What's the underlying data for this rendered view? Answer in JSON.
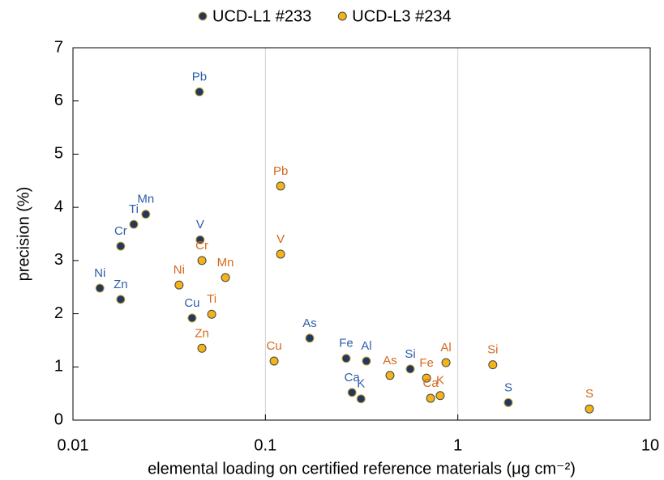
{
  "chart_data": {
    "type": "scatter",
    "xlabel": "elemental loading on certified reference materials (μg cm⁻²)",
    "ylabel": "precision (%)",
    "xscale": "log",
    "xlim": [
      0.01,
      10
    ],
    "xticks": [
      0.01,
      0.1,
      1,
      10
    ],
    "ylim": [
      0,
      7
    ],
    "yticks": [
      0,
      1,
      2,
      3,
      4,
      5,
      6,
      7
    ],
    "grid": "x",
    "legend": "top",
    "series": [
      {
        "name": "UCD-L1 #233",
        "color": "#1f3864",
        "label_color": "#2e5ea8",
        "labels": [
          "Pb",
          "Mn",
          "Ti",
          "Cr",
          "V",
          "Ni",
          "Zn",
          "Cu",
          "As",
          "Fe",
          "Al",
          "Si",
          "Ca",
          "K",
          "S"
        ],
        "x": [
          0.0454,
          0.0239,
          0.0207,
          0.0177,
          0.0458,
          0.0138,
          0.0177,
          0.0416,
          0.17,
          0.263,
          0.335,
          0.566,
          0.282,
          0.314,
          1.83
        ],
        "values": [
          6.17,
          3.87,
          3.68,
          3.27,
          3.39,
          2.48,
          2.27,
          1.92,
          1.54,
          1.16,
          1.11,
          0.96,
          0.52,
          0.4,
          0.33
        ]
      },
      {
        "name": "UCD-L3 #234",
        "color": "#f2b418",
        "label_color": "#d4691e",
        "labels": [
          "Pb",
          "V",
          "Cr",
          "Mn",
          "Ni",
          "Ti",
          "Zn",
          "Cu",
          "As",
          "Fe",
          "Al",
          "Ca",
          "K",
          "Si",
          "S"
        ],
        "x": [
          0.12,
          0.12,
          0.0468,
          0.062,
          0.0356,
          0.0526,
          0.0468,
          0.111,
          0.444,
          0.688,
          0.868,
          0.722,
          0.81,
          1.52,
          4.83
        ],
        "values": [
          4.4,
          3.12,
          3.0,
          2.68,
          2.54,
          1.99,
          1.35,
          1.11,
          0.84,
          0.79,
          1.08,
          0.41,
          0.46,
          1.04,
          0.21
        ]
      }
    ]
  }
}
